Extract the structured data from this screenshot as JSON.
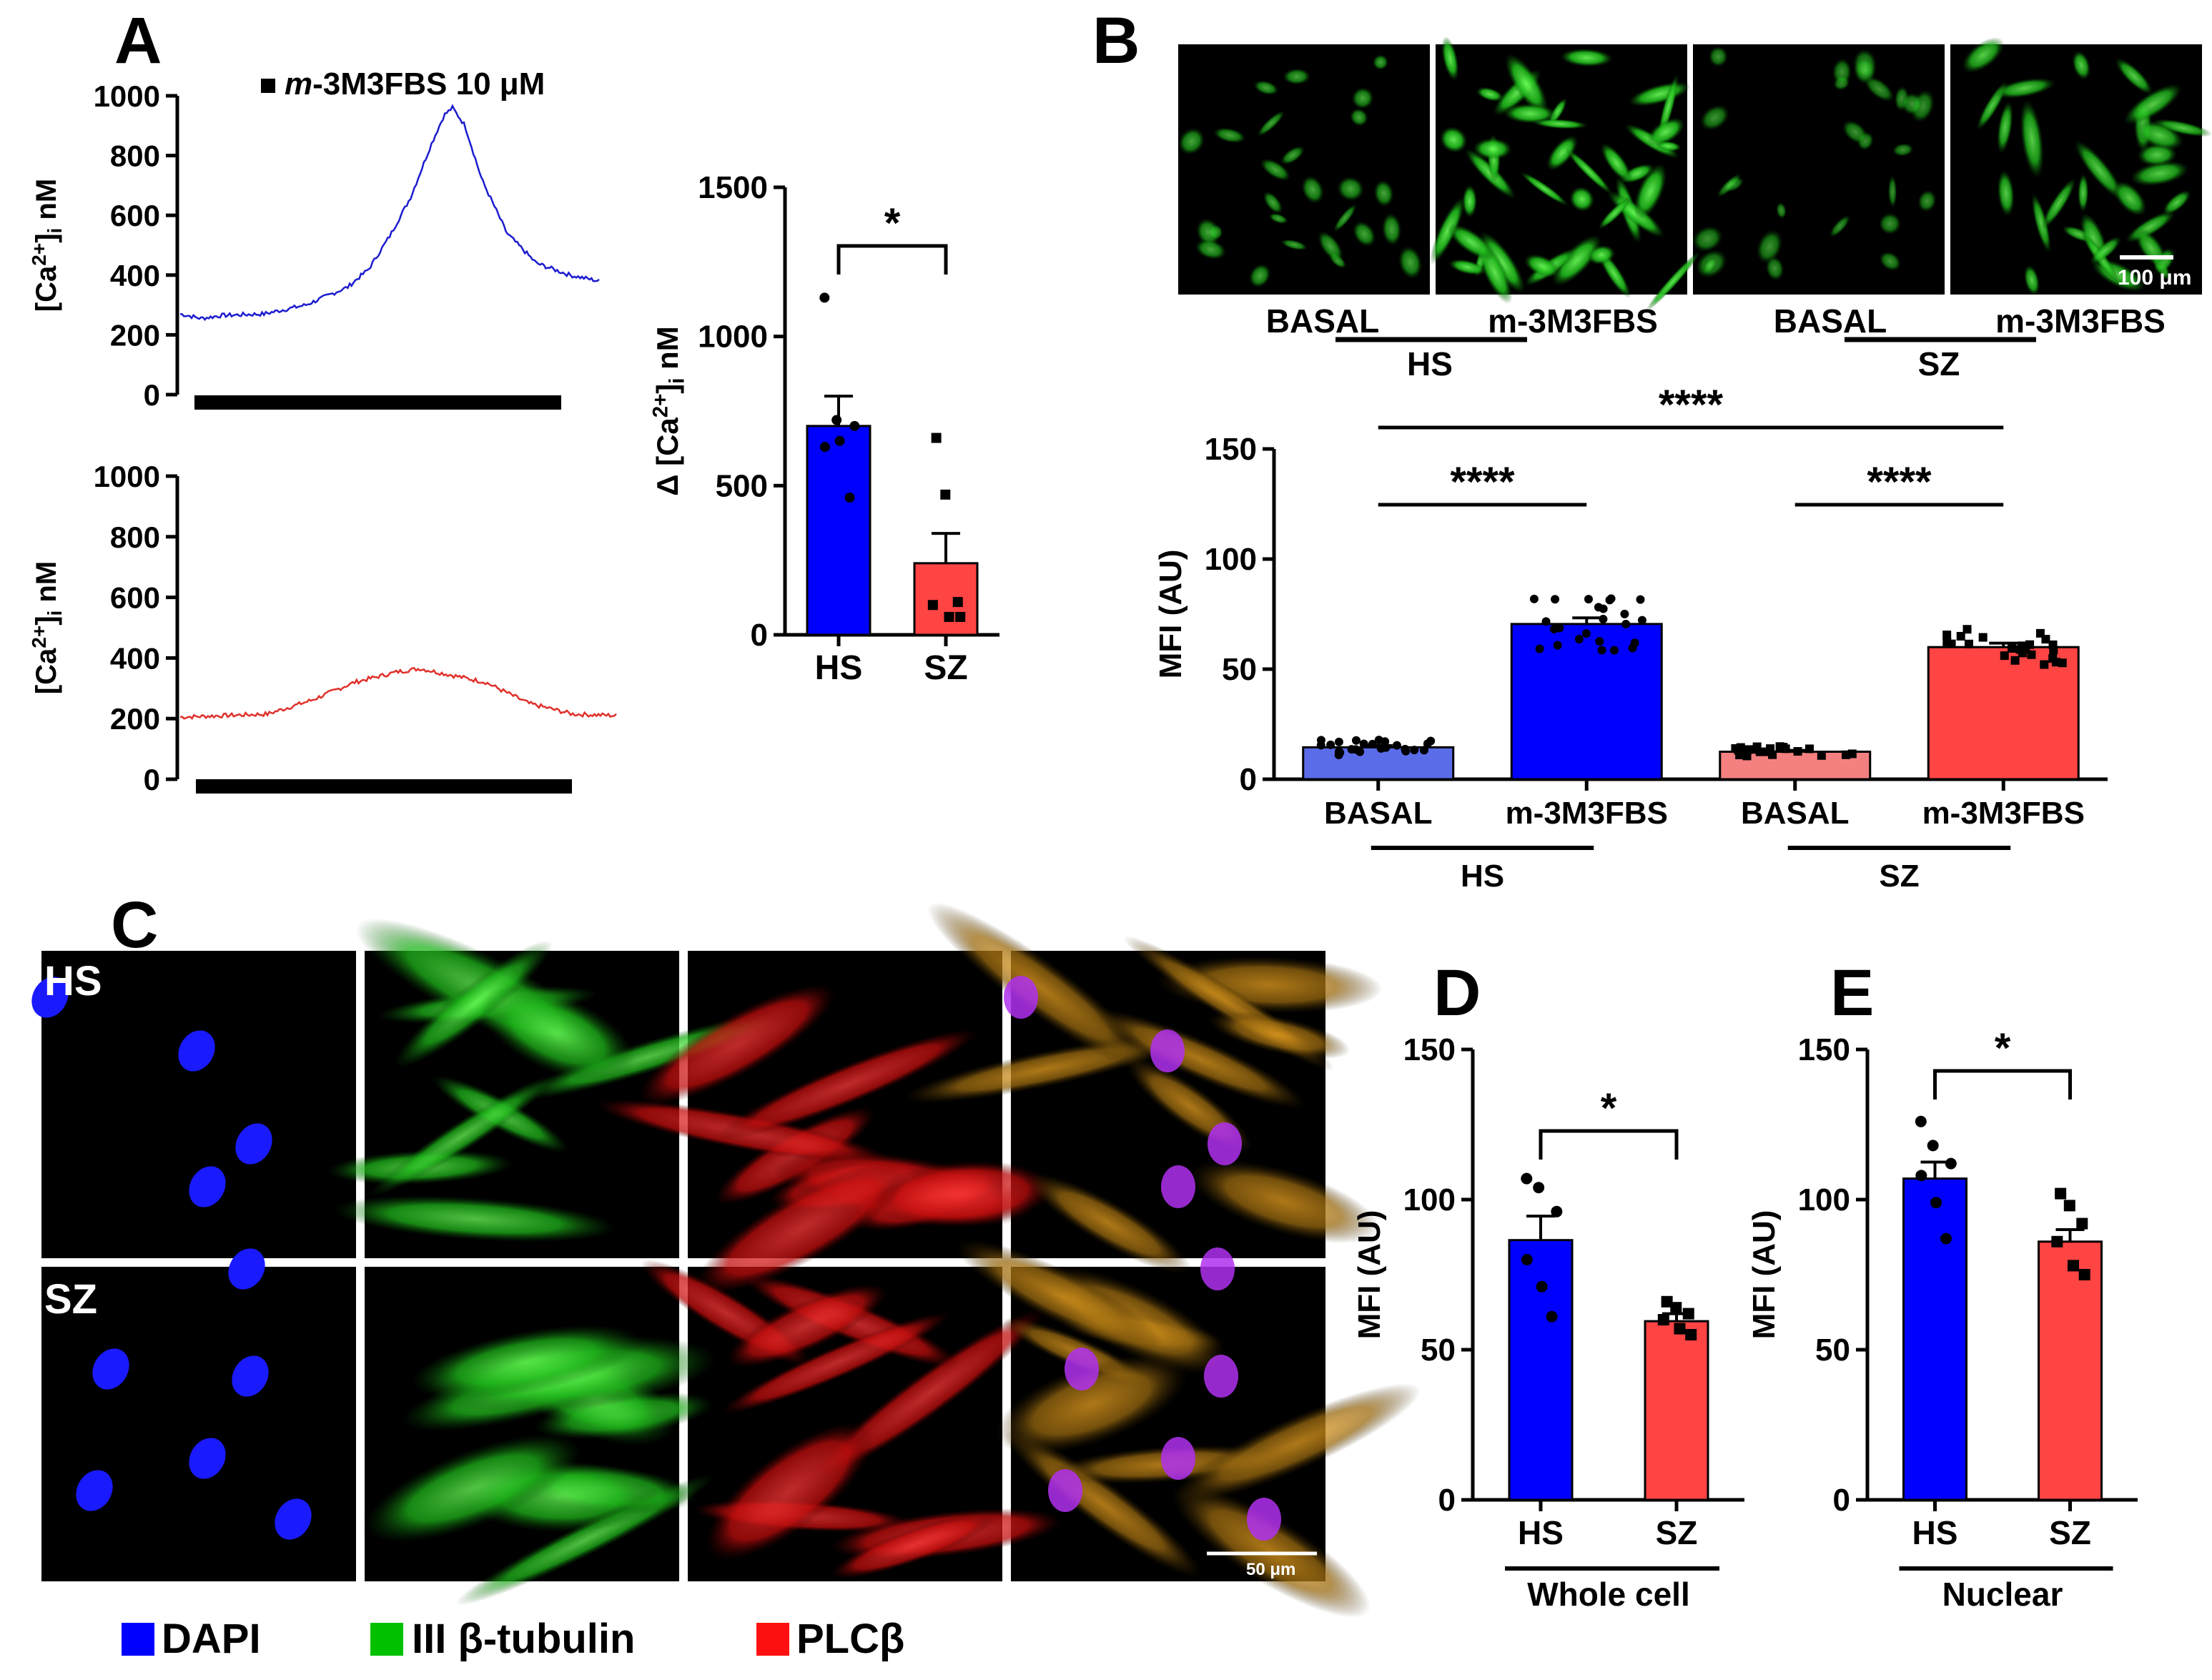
{
  "panel_letters": {
    "a": "A",
    "b": "B",
    "c": "C",
    "d": "D",
    "e": "E"
  },
  "chart_data": [
    {
      "id": "A-trace-HS",
      "type": "line",
      "title": "m-3M3FBS 10 μM",
      "title_italic": "m",
      "title_rest": "-3M3FBS 10 μM",
      "ylabel": "[Ca2+]i nM",
      "ylim": [
        0,
        1000
      ],
      "yticks": [
        "0",
        "200",
        "400",
        "600",
        "800",
        "1000"
      ],
      "series": [
        {
          "name": "HS",
          "color": "#1c1ccf",
          "x": [
            0,
            0.05,
            0.1,
            0.2,
            0.3,
            0.4,
            0.45,
            0.5,
            0.55,
            0.6,
            0.63,
            0.65,
            0.68,
            0.72,
            0.78,
            0.85,
            0.93,
            1.0
          ],
          "values": [
            270,
            255,
            265,
            270,
            300,
            360,
            420,
            530,
            660,
            840,
            935,
            960,
            900,
            720,
            540,
            440,
            400,
            380
          ]
        }
      ],
      "stimulus_bar": "m-3M3FBS"
    },
    {
      "id": "A-trace-SZ",
      "type": "line",
      "ylabel": "[Ca2+]i nM",
      "ylim": [
        0,
        1000
      ],
      "yticks": [
        "0",
        "200",
        "400",
        "600",
        "800",
        "1000"
      ],
      "series": [
        {
          "name": "SZ",
          "color": "#e0302a",
          "x": [
            0,
            0.1,
            0.2,
            0.3,
            0.4,
            0.5,
            0.55,
            0.6,
            0.7,
            0.8,
            0.9,
            1.0
          ],
          "values": [
            205,
            210,
            215,
            260,
            320,
            355,
            365,
            350,
            320,
            250,
            215,
            210
          ]
        }
      ],
      "stimulus_bar": "m-3M3FBS"
    },
    {
      "id": "A-bar",
      "type": "bar",
      "categories": [
        "HS",
        "SZ"
      ],
      "values": [
        700,
        240
      ],
      "sem": [
        100,
        100
      ],
      "colors": [
        "#0000ff",
        "#ff4444"
      ],
      "points": [
        [
          1130,
          720,
          700,
          630,
          650,
          460
        ],
        [
          660,
          470,
          110,
          100,
          60,
          60
        ]
      ],
      "markers": [
        "circle",
        "square"
      ],
      "ylabel": "Δ [Ca2+]i nM",
      "ylim": [
        0,
        1500
      ],
      "yticks": [
        "0",
        "500",
        "1000",
        "1500"
      ],
      "significance": [
        {
          "pair": [
            "HS",
            "SZ"
          ],
          "label": "*"
        }
      ]
    },
    {
      "id": "B-bar",
      "type": "bar",
      "categories": [
        "BASAL",
        "m-3M3FBS",
        "BASAL",
        "m-3M3FBS"
      ],
      "groups": [
        {
          "label": "HS",
          "span": [
            0,
            1
          ]
        },
        {
          "label": "SZ",
          "span": [
            2,
            3
          ]
        }
      ],
      "values": [
        14.5,
        70.5,
        12.5,
        60
      ],
      "sem": [
        0.8,
        2.8,
        0.6,
        1.8
      ],
      "colors": [
        "#5a6ce8",
        "#0000ff",
        "#f58080",
        "#ff4444"
      ],
      "ylabel": "MFI (AU)",
      "ylim": [
        0,
        150
      ],
      "yticks": [
        "0",
        "50",
        "100",
        "150"
      ],
      "significance": [
        {
          "pair": [
            0,
            1
          ],
          "label": "****"
        },
        {
          "pair": [
            2,
            3
          ],
          "label": "****"
        },
        {
          "pair": [
            0,
            3
          ],
          "label": "****"
        }
      ]
    },
    {
      "id": "D-bar",
      "type": "bar",
      "categories": [
        "HS",
        "SZ"
      ],
      "values": [
        86.5,
        59.5
      ],
      "sem": [
        8,
        2.5
      ],
      "colors": [
        "#0000ff",
        "#ff4444"
      ],
      "points": [
        [
          107,
          104,
          96,
          80,
          71,
          61
        ],
        [
          66,
          64,
          62,
          60,
          57,
          55
        ]
      ],
      "markers": [
        "circle",
        "square"
      ],
      "ylabel": "MFI (AU)",
      "ylim": [
        0,
        150
      ],
      "yticks": [
        "0",
        "50",
        "100",
        "150"
      ],
      "group_label": "Whole cell",
      "significance": [
        {
          "pair": [
            "HS",
            "SZ"
          ],
          "label": "*"
        }
      ]
    },
    {
      "id": "E-bar",
      "type": "bar",
      "categories": [
        "HS",
        "SZ"
      ],
      "values": [
        107,
        86
      ],
      "sem": [
        5.5,
        4
      ],
      "colors": [
        "#0000ff",
        "#ff4444"
      ],
      "points": [
        [
          126,
          118,
          112,
          108,
          99,
          87
        ],
        [
          102,
          98,
          92,
          86,
          78,
          75
        ]
      ],
      "markers": [
        "circle",
        "square"
      ],
      "ylabel": "MFI (AU)",
      "ylim": [
        0,
        150
      ],
      "yticks": [
        "0",
        "50",
        "100",
        "150"
      ],
      "group_label": "Nuclear",
      "significance": [
        {
          "pair": [
            "HS",
            "SZ"
          ],
          "label": "*"
        }
      ]
    }
  ],
  "micrographs_b": {
    "labels": [
      "BASAL",
      "m-3M3FBS",
      "BASAL",
      "m-3M3FBS"
    ],
    "groups": [
      "HS",
      "SZ"
    ],
    "scale_bar": "100 μm"
  },
  "micrographs_c": {
    "rows": [
      "HS",
      "SZ"
    ],
    "scale_bar": "50 μm"
  },
  "legend_c": [
    {
      "label": "DAPI",
      "color": "#0000ff"
    },
    {
      "label": "III β-tubulin",
      "color": "#00c000"
    },
    {
      "label": "PLCβ",
      "color": "#ff1010"
    }
  ]
}
